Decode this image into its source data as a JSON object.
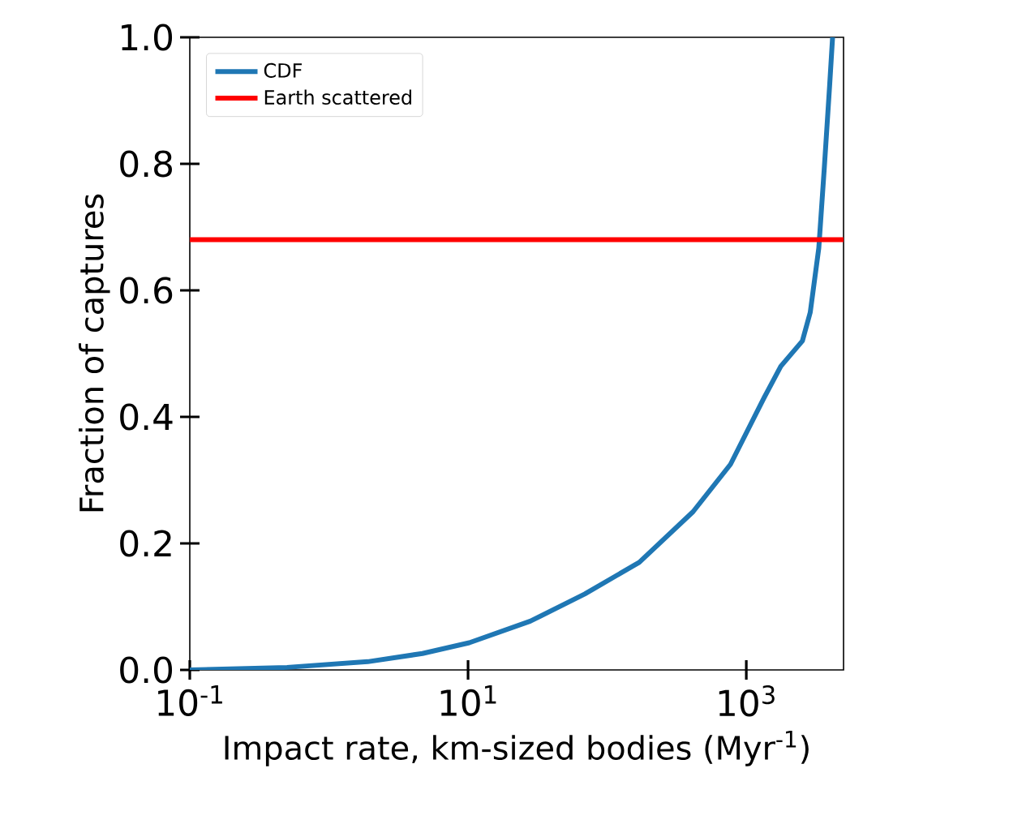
{
  "chart_data": {
    "type": "line",
    "xlabel": "Impact rate, km-sized bodies (Myr$^{-1}$)",
    "ylabel": "Fraction of captures",
    "log": "x",
    "xlim": [
      0.1,
      5000
    ],
    "ylim": [
      0,
      1
    ],
    "xticks": [
      {
        "value": 0.1,
        "label": "10$^{-1}$"
      },
      {
        "value": 10,
        "label": "10$^{1}$"
      },
      {
        "value": 1000,
        "label": "10$^{3}$"
      }
    ],
    "yticks": [
      {
        "value": 0,
        "label": "0.0"
      },
      {
        "value": 0.2,
        "label": "0.2"
      },
      {
        "value": 0.4,
        "label": "0.4"
      },
      {
        "value": 0.6,
        "label": "0.6"
      },
      {
        "value": 0.8,
        "label": "0.8"
      },
      {
        "value": 1,
        "label": "1.0"
      }
    ],
    "x": [
      0.1,
      0.5,
      1.9,
      4.7,
      10.2,
      28,
      69,
      170,
      414,
      770,
      1340,
      1770,
      2530,
      2880,
      3320,
      3640,
      3970,
      4170
    ],
    "series": [
      {
        "name": "CDF",
        "color": "#1f77b4",
        "values": [
          0,
          0.004,
          0.013,
          0.026,
          0.043,
          0.077,
          0.12,
          0.17,
          0.25,
          0.325,
          0.43,
          0.48,
          0.52,
          0.565,
          0.667,
          0.795,
          0.923,
          1.0
        ]
      }
    ],
    "ref_lines": [
      {
        "axis": "y",
        "value": 0.68,
        "label": "Earth scattered",
        "color": "#ff0000",
        "line_style": "solid"
      }
    ],
    "legend": "top left",
    "grid": false,
    "marker": "none",
    "line_style": "solid"
  }
}
